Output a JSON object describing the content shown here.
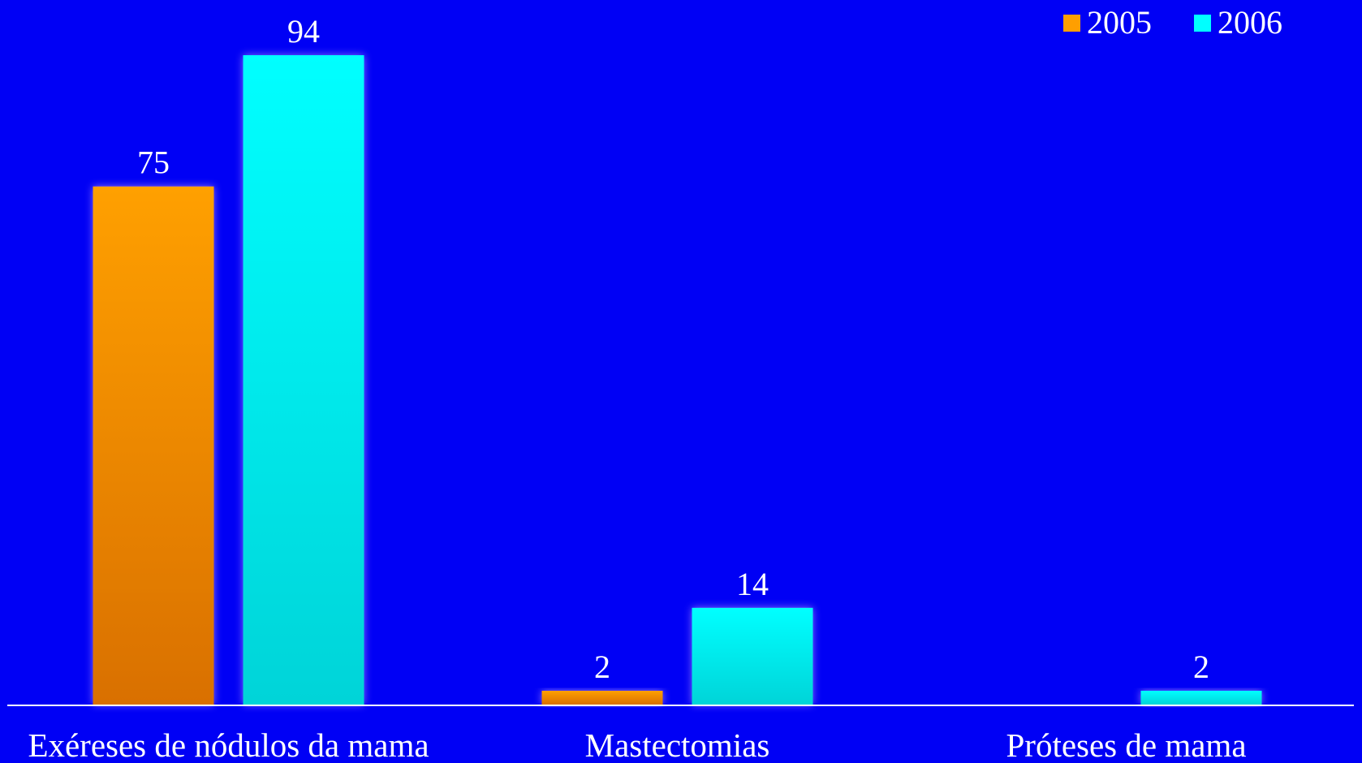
{
  "chart_data": {
    "type": "bar",
    "categories": [
      "Exéreses de nódulos da mama",
      "Mastectomias",
      "Próteses de mama"
    ],
    "series": [
      {
        "name": "2005",
        "values": [
          75,
          2,
          null
        ],
        "color": "#ff9f00",
        "color_dark": "#d97000"
      },
      {
        "name": "2006",
        "values": [
          94,
          14,
          2
        ],
        "color": "#00ffff",
        "color_dark": "#00d4d8"
      }
    ],
    "data_labels": [
      [
        "75",
        "2",
        ""
      ],
      [
        "94",
        "14",
        "2"
      ]
    ],
    "title": "",
    "xlabel": "",
    "ylabel": "",
    "ylim": [
      0,
      94
    ],
    "grid": false,
    "legend_position": "top-right",
    "background_color": "#0000f5",
    "text_color": "#ffffff",
    "axis_color": "#ffffff"
  }
}
